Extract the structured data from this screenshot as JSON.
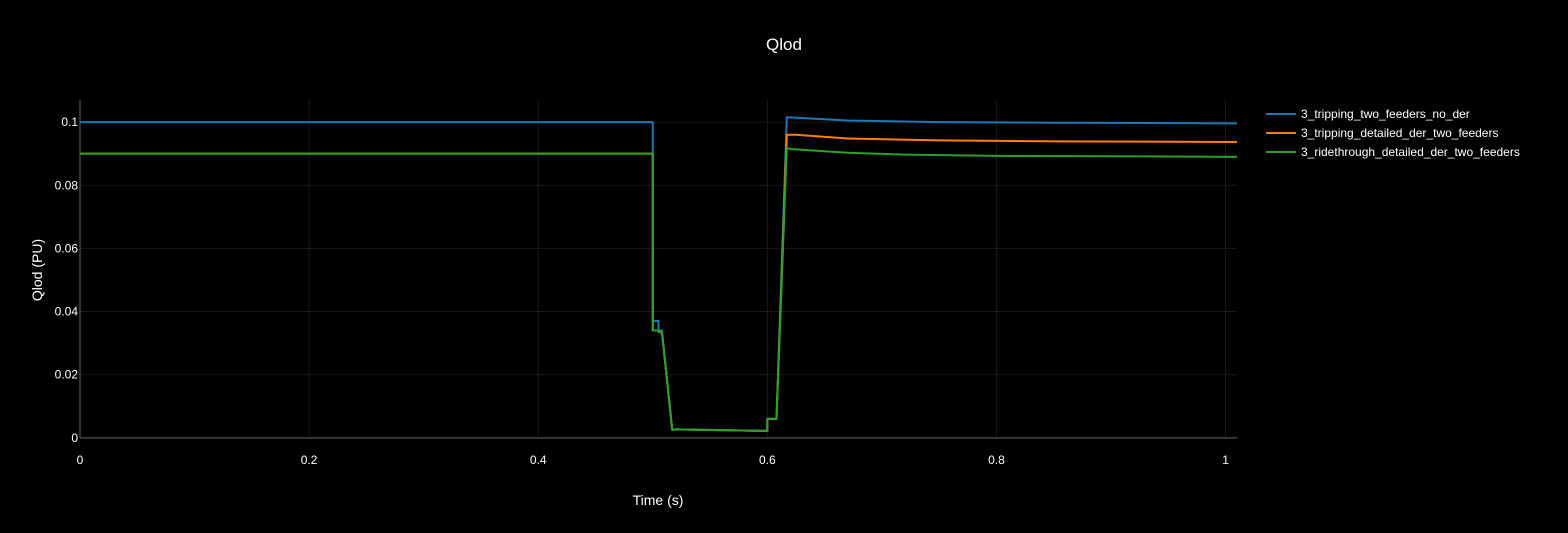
{
  "chart_data": {
    "type": "line",
    "title": "Qlod",
    "xlabel": "Time (s)",
    "ylabel": "Qlod (PU)",
    "xlim": [
      0,
      1.01
    ],
    "ylim": [
      -0.001,
      0.107
    ],
    "x_ticks": [
      0,
      0.2,
      0.4,
      0.6,
      0.8,
      1
    ],
    "x_tick_labels": [
      "0",
      "0.2",
      "0.4",
      "0.6",
      "0.8",
      "1"
    ],
    "y_ticks": [
      0,
      0.02,
      0.04,
      0.06,
      0.08,
      0.1
    ],
    "y_tick_labels": [
      "0",
      "0.02",
      "0.04",
      "0.06",
      "0.08",
      "0.1"
    ],
    "grid": true,
    "legend_position": "top-right, outside plot",
    "series": [
      {
        "name": "3_tripping_two_feeders_no_der",
        "color": "#1f77b4",
        "x": [
          0,
          0.5,
          0.5,
          0.5,
          0.505,
          0.505,
          0.508,
          0.517,
          0.52,
          0.6,
          0.6,
          0.608,
          0.608,
          0.617,
          0.62,
          0.67,
          0.75,
          0.85,
          1.01
        ],
        "y": [
          0.1,
          0.1,
          0.09,
          0.037,
          0.037,
          0.034,
          0.034,
          0.0025,
          0.0027,
          0.0022,
          0.006,
          0.006,
          0.006,
          0.1015,
          0.1015,
          0.1005,
          0.1,
          0.0998,
          0.0996
        ]
      },
      {
        "name": "3_tripping_detailed_der_two_feeders",
        "color": "#ff7f0e",
        "x": [
          0,
          0.5,
          0.5,
          0.5,
          0.505,
          0.505,
          0.508,
          0.517,
          0.52,
          0.6,
          0.6,
          0.608,
          0.608,
          0.617,
          0.625,
          0.67,
          0.75,
          0.85,
          1.01
        ],
        "y": [
          0.09,
          0.09,
          0.09,
          0.034,
          0.034,
          0.0335,
          0.0335,
          0.0025,
          0.0027,
          0.0022,
          0.006,
          0.006,
          0.006,
          0.096,
          0.096,
          0.0948,
          0.0942,
          0.0939,
          0.0937
        ]
      },
      {
        "name": "3_ridethrough_detailed_der_two_feeders",
        "color": "#2ca02c",
        "x": [
          0,
          0.5,
          0.5,
          0.505,
          0.505,
          0.508,
          0.517,
          0.52,
          0.6,
          0.6,
          0.608,
          0.608,
          0.617,
          0.62,
          0.67,
          0.72,
          0.8,
          0.9,
          1.01
        ],
        "y": [
          0.09,
          0.09,
          0.034,
          0.034,
          0.0335,
          0.0335,
          0.0025,
          0.0027,
          0.0022,
          0.006,
          0.006,
          0.006,
          0.0918,
          0.0915,
          0.0903,
          0.0897,
          0.0893,
          0.0892,
          0.089
        ]
      }
    ]
  }
}
